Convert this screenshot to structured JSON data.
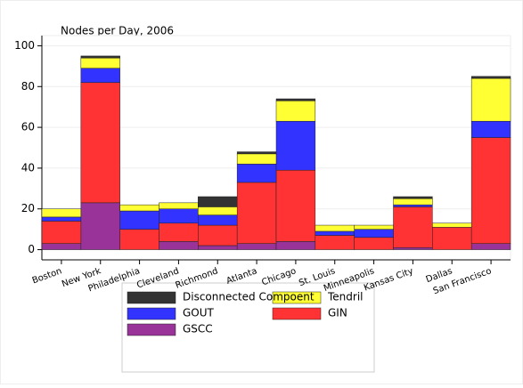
{
  "chart_data": {
    "type": "stacked_bar",
    "title": "Nodes per Day, 2006",
    "categories": [
      "Boston",
      "New York",
      "Philadelphia",
      "Cleveland",
      "Richmond",
      "Atlanta",
      "Chicago",
      "St. Louis",
      "Minneapolis",
      "Kansas City",
      "Dallas",
      "San Francisco"
    ],
    "series": [
      {
        "name": "GSCC",
        "color": "#993399",
        "values": [
          3,
          23,
          0,
          4,
          2,
          3,
          4,
          0,
          0,
          1,
          0,
          3
        ]
      },
      {
        "name": "GIN",
        "color": "#ff3333",
        "values": [
          11,
          59,
          10,
          9,
          10,
          30,
          35,
          7,
          6,
          20,
          11,
          52
        ]
      },
      {
        "name": "GOUT",
        "color": "#3333ff",
        "values": [
          2,
          7,
          9,
          7,
          5,
          9,
          24,
          2,
          4,
          1,
          0,
          8
        ]
      },
      {
        "name": "Tendril",
        "color": "#ffff33",
        "values": [
          4,
          5,
          3,
          3,
          4,
          5,
          10,
          3,
          2,
          3,
          2,
          21
        ]
      },
      {
        "name": "Disconnected Compoent",
        "color": "#333333",
        "values": [
          0,
          1,
          0,
          0,
          5,
          1,
          1,
          0,
          0,
          1,
          0,
          1
        ]
      }
    ],
    "ylim": [
      -5,
      105
    ],
    "yticks": [
      0,
      20,
      40,
      60,
      80,
      100
    ],
    "grid": true
  }
}
